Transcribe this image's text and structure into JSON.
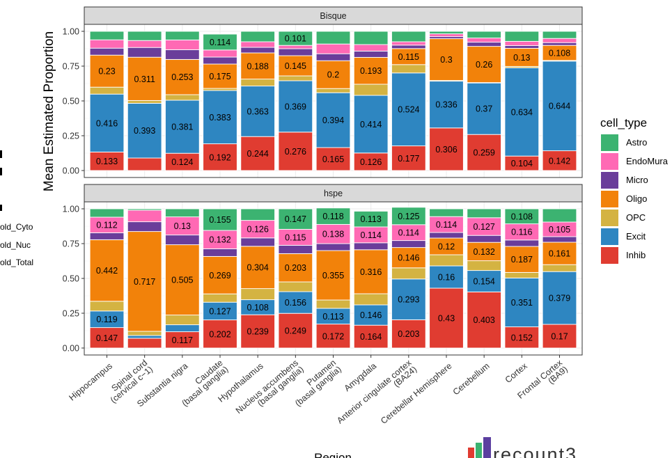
{
  "chart_data": {
    "type": "bar",
    "stacked": true,
    "xlabel": "Region",
    "ylabel": "Mean Estimated Proportion",
    "ylim": [
      0,
      1
    ],
    "yticks": [
      "0.00",
      "0.25",
      "0.50",
      "0.75",
      "1.00"
    ],
    "categories": [
      "Hippocampus",
      "Spinal cord (cervical c−1)",
      "Substantia nigra",
      "Caudate (basal ganglia)",
      "Hypothalamus",
      "Nucleus accumbens (basal ganglia)",
      "Putamen (basal ganglia)",
      "Amygdala",
      "Anterior cingulate cortex (BA24)",
      "Cerebellar Hemisphere",
      "Cerebellum",
      "Cortex",
      "Frontal Cortex (BA9)"
    ],
    "category_lines": [
      [
        "Hippocampus"
      ],
      [
        "Spinal cord",
        "(cervical c−1)"
      ],
      [
        "Substantia nigra"
      ],
      [
        "Caudate",
        "(basal ganglia)"
      ],
      [
        "Hypothalamus"
      ],
      [
        "Nucleus accumbens",
        "(basal ganglia)"
      ],
      [
        "Putamen",
        "(basal ganglia)"
      ],
      [
        "Amygdala"
      ],
      [
        "Anterior cingulate cortex",
        "(BA24)"
      ],
      [
        "Cerebellar Hemisphere"
      ],
      [
        "Cerebellum"
      ],
      [
        "Cortex"
      ],
      [
        "Frontal Cortex",
        "(BA9)"
      ]
    ],
    "cell_types_bottom_to_top": [
      "Inhib",
      "Excit",
      "OPC",
      "Oligo",
      "Micro",
      "EndoMural",
      "Astro"
    ],
    "colors": {
      "Astro": "#3CB371",
      "EndoMural": "#FF69B4",
      "Micro": "#6A3D9A",
      "Oligo": "#F2820A",
      "OPC": "#D4B342",
      "Excit": "#2E86C1",
      "Inhib": "#E03C31"
    },
    "legend": {
      "title": "cell_type",
      "position": "right",
      "labels": [
        "Astro",
        "EndoMura",
        "Micro",
        "Oligo",
        "OPC",
        "Excit",
        "Inhib"
      ],
      "keys": [
        "Astro",
        "EndoMural",
        "Micro",
        "Oligo",
        "OPC",
        "Excit",
        "Inhib"
      ]
    },
    "panels": [
      {
        "name": "Bisque",
        "series": [
          {
            "name": "Inhib",
            "values": [
              0.133,
              0.09,
              0.124,
              0.192,
              0.244,
              0.276,
              0.165,
              0.126,
              0.177,
              0.306,
              0.259,
              0.104,
              0.142
            ]
          },
          {
            "name": "Excit",
            "values": [
              0.416,
              0.393,
              0.381,
              0.383,
              0.363,
              0.369,
              0.394,
              0.414,
              0.524,
              0.336,
              0.37,
              0.634,
              0.644
            ]
          },
          {
            "name": "OPC",
            "values": [
              0.05,
              0.02,
              0.04,
              0.015,
              0.05,
              0.035,
              0.03,
              0.08,
              0.06,
              0.005,
              0.003,
              0.01,
              0.005
            ]
          },
          {
            "name": "Oligo",
            "values": [
              0.23,
              0.311,
              0.253,
              0.175,
              0.188,
              0.145,
              0.2,
              0.193,
              0.115,
              0.3,
              0.26,
              0.13,
              0.108
            ]
          },
          {
            "name": "Micro",
            "values": [
              0.05,
              0.07,
              0.07,
              0.05,
              0.04,
              0.05,
              0.05,
              0.045,
              0.025,
              0.015,
              0.03,
              0.02,
              0.02
            ]
          },
          {
            "name": "EndoMural",
            "values": [
              0.06,
              0.05,
              0.07,
              0.051,
              0.04,
              0.024,
              0.07,
              0.047,
              0.024,
              0.02,
              0.03,
              0.03,
              0.03
            ]
          },
          {
            "name": "Astro",
            "values": [
              0.061,
              0.066,
              0.062,
              0.114,
              0.075,
              0.101,
              0.091,
              0.095,
              0.075,
              0.018,
              0.048,
              0.072,
              0.051
            ]
          }
        ],
        "labels": {
          "Inhib": [
            "0.133",
            "",
            "0.124",
            "0.192",
            "0.244",
            "0.276",
            "0.165",
            "0.126",
            "0.177",
            "0.306",
            "0.259",
            "0.104",
            "0.142"
          ],
          "Excit": [
            "0.416",
            "0.393",
            "0.381",
            "0.383",
            "0.363",
            "0.369",
            "0.394",
            "0.414",
            "0.524",
            "0.336",
            "0.37",
            "0.634",
            "0.644"
          ],
          "OPC": [
            "",
            "",
            "",
            "",
            "",
            "",
            "",
            "",
            "",
            "",
            "",
            "",
            ""
          ],
          "Oligo": [
            "0.23",
            "0.311",
            "0.253",
            "0.175",
            "0.188",
            "0.145",
            "0.2",
            "0.193",
            "0.115",
            "0.3",
            "0.26",
            "0.13",
            "0.108"
          ],
          "Micro": [
            "",
            "",
            "",
            "",
            "",
            "",
            "",
            "",
            "",
            "",
            "",
            "",
            ""
          ],
          "EndoMural": [
            "",
            "",
            "",
            "",
            "",
            "",
            "",
            "",
            "",
            "",
            "",
            "",
            ""
          ],
          "Astro": [
            "",
            "",
            "",
            "0.114",
            "",
            "0.101",
            "",
            "",
            "",
            "",
            "",
            "",
            ""
          ]
        }
      },
      {
        "name": "hspe",
        "series": [
          {
            "name": "Inhib",
            "values": [
              0.147,
              0.07,
              0.117,
              0.202,
              0.239,
              0.249,
              0.172,
              0.164,
              0.203,
              0.43,
              0.403,
              0.152,
              0.17
            ]
          },
          {
            "name": "Excit",
            "values": [
              0.119,
              0.02,
              0.05,
              0.127,
              0.108,
              0.156,
              0.113,
              0.146,
              0.293,
              0.16,
              0.154,
              0.351,
              0.379
            ]
          },
          {
            "name": "OPC",
            "values": [
              0.07,
              0.03,
              0.07,
              0.06,
              0.08,
              0.07,
              0.06,
              0.08,
              0.08,
              0.08,
              0.07,
              0.04,
              0.05
            ]
          },
          {
            "name": "Oligo",
            "values": [
              0.442,
              0.717,
              0.505,
              0.269,
              0.304,
              0.203,
              0.355,
              0.316,
              0.146,
              0.12,
              0.132,
              0.187,
              0.161
            ]
          },
          {
            "name": "Micro",
            "values": [
              0.05,
              0.07,
              0.07,
              0.055,
              0.06,
              0.06,
              0.05,
              0.05,
              0.05,
              0.04,
              0.05,
              0.046,
              0.04
            ]
          },
          {
            "name": "EndoMural",
            "values": [
              0.112,
              0.083,
              0.13,
              0.132,
              0.126,
              0.115,
              0.138,
              0.114,
              0.114,
              0.114,
              0.127,
              0.116,
              0.105
            ]
          },
          {
            "name": "Astro",
            "values": [
              0.06,
              0.01,
              0.058,
              0.155,
              0.083,
              0.147,
              0.118,
              0.113,
              0.125,
              0.056,
              0.064,
              0.108,
              0.095
            ]
          }
        ],
        "labels": {
          "Inhib": [
            "0.147",
            "",
            "0.117",
            "0.202",
            "0.239",
            "0.249",
            "0.172",
            "0.164",
            "0.203",
            "0.43",
            "0.403",
            "0.152",
            "0.17"
          ],
          "Excit": [
            "0.119",
            "",
            "",
            "0.127",
            "0.108",
            "0.156",
            "0.113",
            "0.146",
            "0.293",
            "0.16",
            "0.154",
            "0.351",
            "0.379"
          ],
          "OPC": [
            "",
            "",
            "",
            "",
            "",
            "",
            "",
            "",
            "",
            "",
            "",
            "",
            ""
          ],
          "Oligo": [
            "0.442",
            "0.717",
            "0.505",
            "0.269",
            "0.304",
            "0.203",
            "0.355",
            "0.316",
            "0.146",
            "0.12",
            "0.132",
            "0.187",
            "0.161"
          ],
          "Micro": [
            "",
            "",
            "",
            "",
            "",
            "",
            "",
            "",
            "",
            "",
            "",
            "",
            ""
          ],
          "EndoMural": [
            "0.112",
            "",
            "0.13",
            "0.132",
            "0.126",
            "0.115",
            "0.138",
            "0.114",
            "0.114",
            "0.114",
            "0.127",
            "0.116",
            "0.105"
          ],
          "Astro": [
            "",
            "",
            "",
            "0.155",
            "",
            "0.147",
            "0.118",
            "0.113",
            "0.125",
            "",
            "",
            "0.108",
            ""
          ]
        }
      }
    ]
  },
  "left_fragments": [
    "old_Cyto",
    "old_Nuc",
    "old_Total"
  ],
  "logo": {
    "text": "recount3"
  }
}
